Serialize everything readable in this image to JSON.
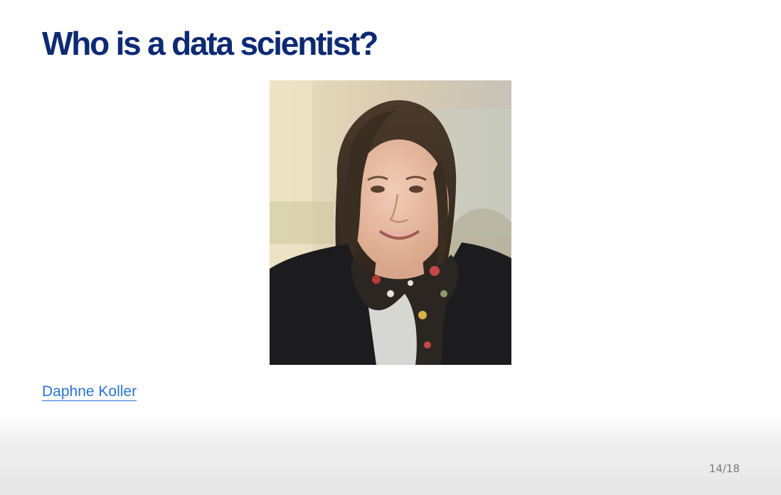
{
  "slide": {
    "title": "Who is a data scientist?",
    "person_link": "Daphne Koller",
    "page_number": "14/18"
  },
  "colors": {
    "title": "#0d2a73",
    "link": "#2a74d6",
    "page_number": "#7a7a7a"
  }
}
